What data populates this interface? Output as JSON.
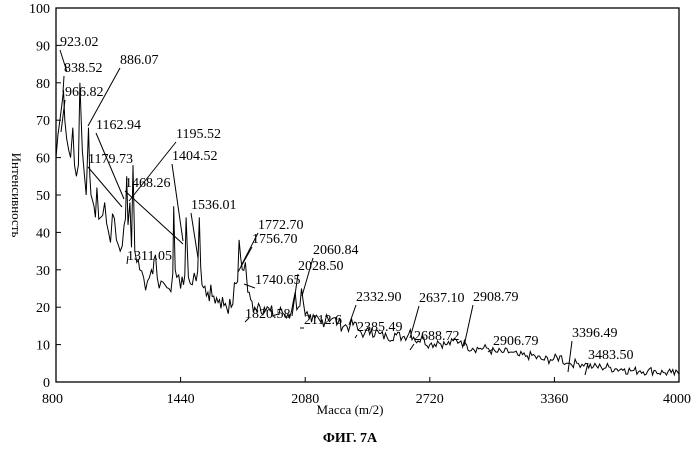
{
  "chart_data": {
    "type": "line",
    "xlabel": "Масса (m/2)",
    "ylabel": "Интенсивность",
    "xlim": [
      800,
      4000
    ],
    "ylim": [
      0,
      100
    ],
    "x_ticks": [
      800,
      1440,
      2080,
      2720,
      3360,
      4000
    ],
    "y_ticks": [
      0,
      10,
      20,
      30,
      40,
      50,
      60,
      70,
      80,
      90,
      100
    ],
    "caption": "ФИГ. 7А",
    "grid": false,
    "legend": "none",
    "series": [
      {
        "x": [
          800,
          810,
          820,
          830,
          838.5,
          845,
          855,
          865,
          875,
          886.1,
          895,
          905,
          915,
          923,
          935,
          945,
          955,
          966.8,
          980,
          995,
          1010,
          1030,
          1050,
          1070,
          1090,
          1110,
          1130,
          1150,
          1162.9,
          1170,
          1179.7,
          1188,
          1195.5,
          1205,
          1215,
          1230,
          1250,
          1270,
          1290,
          1311.1,
          1320,
          1340,
          1360,
          1380,
          1400,
          1404.5,
          1420,
          1440,
          1455,
          1468.3,
          1480,
          1500,
          1520,
          1536,
          1550,
          1580,
          1610,
          1640,
          1670,
          1700,
          1740.7,
          1756.7,
          1772.7,
          1785,
          1800,
          1820.6,
          1840,
          1870,
          1900,
          1930,
          1960,
          1990,
          2010,
          2028.5,
          2045,
          2060.8,
          2080,
          2100,
          2112.6,
          2130,
          2160,
          2190,
          2220,
          2250,
          2280,
          2310,
          2332.9,
          2350,
          2385.5,
          2420,
          2460,
          2500,
          2540,
          2580,
          2620,
          2637.1,
          2660,
          2688.7,
          2720,
          2760,
          2800,
          2840,
          2880,
          2906.8,
          2908.8,
          2940,
          2980,
          3020,
          3060,
          3100,
          3140,
          3180,
          3220,
          3260,
          3300,
          3340,
          3396.5,
          3420,
          3440,
          3483.5,
          3520,
          3560,
          3600,
          3640,
          3680,
          3720,
          3760,
          3800,
          3840,
          3880,
          3920,
          3960,
          4000
        ],
        "y": [
          60,
          66,
          70,
          74,
          78,
          70,
          65,
          62,
          60,
          68,
          58,
          55,
          58,
          80,
          62,
          56,
          50,
          68,
          50,
          47,
          52,
          44,
          48,
          40,
          45,
          38,
          35,
          42,
          55,
          42,
          48,
          36,
          58,
          35,
          32,
          30,
          28,
          27,
          30,
          34,
          28,
          27,
          26,
          25,
          29,
          47,
          28,
          25,
          26,
          44,
          28,
          26,
          27,
          44,
          26,
          24,
          23,
          22,
          21,
          20,
          38,
          30,
          32,
          24,
          22,
          20,
          21,
          20,
          19,
          18,
          19,
          18,
          19,
          24,
          20,
          25,
          18,
          17,
          16,
          17,
          16,
          18,
          17,
          16,
          15,
          15,
          16,
          14,
          13,
          14,
          13,
          12,
          13,
          12,
          14,
          12,
          11,
          12,
          10,
          11,
          10,
          11,
          11,
          10,
          10,
          9,
          9,
          9,
          8,
          8,
          8,
          7,
          7,
          7,
          6,
          6,
          7,
          5,
          5,
          5,
          5,
          4,
          4,
          4,
          3.5,
          3.5,
          3,
          3,
          3,
          3,
          2.5,
          2.5,
          2
        ]
      }
    ],
    "annotations": [
      {
        "text": "923.02",
        "x": 923.02
      },
      {
        "text": "838.52",
        "x": 838.52
      },
      {
        "text": "966.82",
        "x": 966.82
      },
      {
        "text": "886.07",
        "x": 886.07
      },
      {
        "text": "1162.94",
        "x": 1162.94
      },
      {
        "text": "1195.52",
        "x": 1195.52
      },
      {
        "text": "1179.73",
        "x": 1179.73
      },
      {
        "text": "1404.52",
        "x": 1404.52
      },
      {
        "text": "1468.26",
        "x": 1468.26
      },
      {
        "text": "1536.01",
        "x": 1536.01
      },
      {
        "text": "1772.70",
        "x": 1772.7
      },
      {
        "text": "1756.70",
        "x": 1756.7
      },
      {
        "text": "1311.05",
        "x": 1311.05
      },
      {
        "text": "2060.84",
        "x": 2060.84
      },
      {
        "text": "1740.65",
        "x": 1740.65
      },
      {
        "text": "2028.50",
        "x": 2028.5
      },
      {
        "text": "2332.90",
        "x": 2332.9
      },
      {
        "text": "2637.10",
        "x": 2637.1
      },
      {
        "text": "1820.58",
        "x": 1820.58
      },
      {
        "text": "2112.6",
        "x": 2112.6
      },
      {
        "text": "2385.49",
        "x": 2385.49
      },
      {
        "text": "2908.79",
        "x": 2908.79
      },
      {
        "text": "2688.72",
        "x": 2688.72
      },
      {
        "text": "2906.79",
        "x": 2906.79
      },
      {
        "text": "3396.49",
        "x": 3396.49
      },
      {
        "text": "3483.50",
        "x": 3483.5
      }
    ]
  }
}
